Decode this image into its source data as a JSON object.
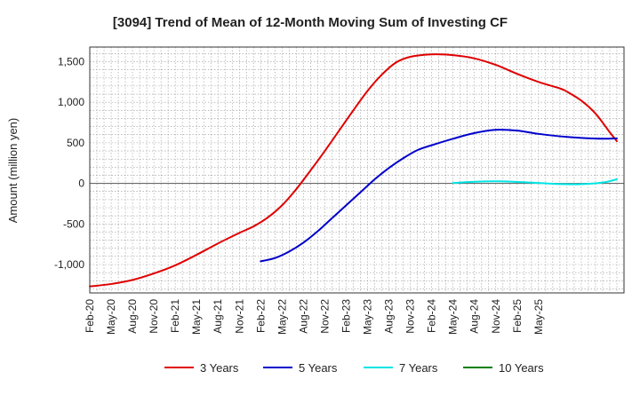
{
  "chart_data": {
    "type": "line",
    "title": "[3094]  Trend of Mean of 12-Month Moving Sum of Investing CF",
    "xlabel": "",
    "ylabel": "Amount (million yen)",
    "ylim": [
      -1350,
      1680
    ],
    "y_ticks": [
      1500,
      1000,
      500,
      0,
      -500,
      -1000
    ],
    "y_tick_labels": [
      "1,500",
      "1,000",
      "500",
      "0",
      "-500",
      "-1,000"
    ],
    "x_ticks": [
      "Feb-20",
      "May-20",
      "Aug-20",
      "Nov-20",
      "Feb-21",
      "May-21",
      "Aug-21",
      "Nov-21",
      "Feb-22",
      "May-22",
      "Aug-22",
      "Nov-22",
      "Feb-23",
      "May-23",
      "Aug-23",
      "Nov-23",
      "Feb-24",
      "May-24",
      "Aug-24",
      "Nov-24",
      "Feb-25",
      "May-25"
    ],
    "x_index_range": [
      0,
      63
    ],
    "grid": true,
    "legend_position": "bottom",
    "series": [
      {
        "name": "3 Years",
        "color": "#e00000",
        "points": [
          [
            0,
            -1270
          ],
          [
            3,
            -1240
          ],
          [
            6,
            -1190
          ],
          [
            9,
            -1110
          ],
          [
            12,
            -1010
          ],
          [
            15,
            -880
          ],
          [
            18,
            -740
          ],
          [
            21,
            -610
          ],
          [
            23,
            -530
          ],
          [
            25,
            -420
          ],
          [
            27,
            -270
          ],
          [
            29,
            -70
          ],
          [
            31,
            160
          ],
          [
            33,
            400
          ],
          [
            35,
            650
          ],
          [
            37,
            900
          ],
          [
            39,
            1140
          ],
          [
            41,
            1340
          ],
          [
            43,
            1490
          ],
          [
            45,
            1560
          ],
          [
            48,
            1590
          ],
          [
            51,
            1580
          ],
          [
            54,
            1540
          ],
          [
            57,
            1460
          ],
          [
            60,
            1350
          ],
          [
            63,
            1250
          ],
          [
            66,
            1170
          ],
          [
            67,
            1130
          ],
          [
            69,
            1020
          ],
          [
            71,
            860
          ],
          [
            73,
            630
          ],
          [
            74,
            520
          ]
        ]
      },
      {
        "name": "5 Years",
        "color": "#0000cc",
        "points": [
          [
            24,
            -960
          ],
          [
            26,
            -920
          ],
          [
            28,
            -840
          ],
          [
            30,
            -730
          ],
          [
            32,
            -590
          ],
          [
            34,
            -430
          ],
          [
            36,
            -270
          ],
          [
            38,
            -110
          ],
          [
            40,
            50
          ],
          [
            42,
            190
          ],
          [
            44,
            310
          ],
          [
            46,
            410
          ],
          [
            48,
            470
          ],
          [
            51,
            550
          ],
          [
            54,
            620
          ],
          [
            57,
            660
          ],
          [
            60,
            650
          ],
          [
            63,
            610
          ],
          [
            66,
            580
          ],
          [
            69,
            560
          ],
          [
            72,
            550
          ],
          [
            74,
            555
          ]
        ]
      },
      {
        "name": "7 Years",
        "color": "#00e5e5",
        "points": [
          [
            51,
            5
          ],
          [
            54,
            20
          ],
          [
            57,
            25
          ],
          [
            60,
            18
          ],
          [
            63,
            5
          ],
          [
            66,
            -8
          ],
          [
            69,
            -10
          ],
          [
            72,
            10
          ],
          [
            74,
            50
          ]
        ]
      },
      {
        "name": "10 Years",
        "color": "#008000",
        "points": []
      }
    ]
  }
}
